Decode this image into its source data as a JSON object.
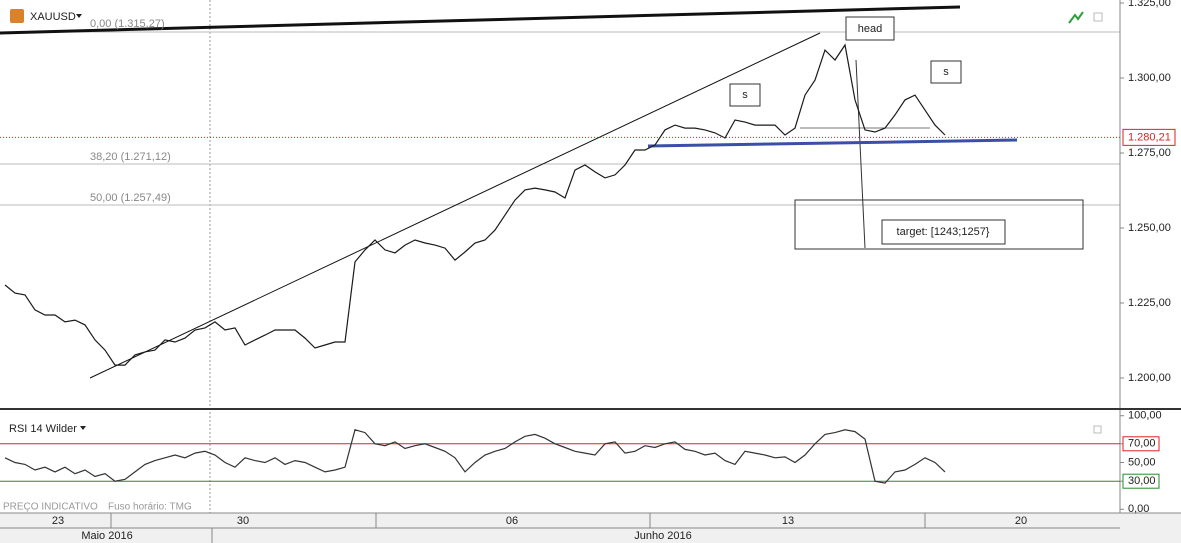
{
  "chart_data": [
    {
      "type": "line",
      "title": "XAUUSD",
      "color": "#1a1a1a",
      "values": [
        1.231,
        1.2283,
        1.2277,
        1.2227,
        1.221,
        1.221,
        1.2187,
        1.2193,
        1.2177,
        1.2127,
        1.2093,
        1.2043,
        1.2043,
        1.2077,
        1.2087,
        1.2093,
        1.2127,
        1.212,
        1.2133,
        1.216,
        1.2167,
        1.2187,
        1.216,
        1.2167,
        1.211,
        1.2127,
        1.2143,
        1.216,
        1.216,
        1.216,
        1.2133,
        1.21,
        1.211,
        1.212,
        1.212,
        1.2387,
        1.2427,
        1.246,
        1.2427,
        1.2417,
        1.2443,
        1.246,
        1.245,
        1.2443,
        1.2433,
        1.2393,
        1.242,
        1.245,
        1.246,
        1.2493,
        1.2543,
        1.2593,
        1.2627,
        1.2633,
        1.2627,
        1.262,
        1.26,
        1.2693,
        1.271,
        1.2687,
        1.2667,
        1.2677,
        1.271,
        1.276,
        1.276,
        1.2777,
        1.2827,
        1.2843,
        1.2833,
        1.2833,
        1.2827,
        1.2817,
        1.28,
        1.286,
        1.2853,
        1.2843,
        1.2843,
        1.2843,
        1.281,
        1.2833,
        1.2943,
        1.2993,
        1.3093,
        1.306,
        1.311,
        1.2927,
        1.2827,
        1.282,
        1.2833,
        1.2877,
        1.2927,
        1.2943,
        1.2893,
        1.2843,
        1.281
      ],
      "xlim": [
        -0.5,
        111.5
      ],
      "xticks": [
        {
          "value": 5.3,
          "label": "23"
        },
        {
          "value": 23.8,
          "label": "30"
        },
        {
          "value": 50.7,
          "label": "06"
        },
        {
          "value": 78.3,
          "label": "13"
        },
        {
          "value": 101.6,
          "label": "20"
        }
      ],
      "months": [
        {
          "value": 10.2,
          "label": "Maio 2016"
        },
        {
          "value": 65.8,
          "label": "Junho 2016"
        }
      ],
      "ylim": [
        1.19,
        1.326
      ],
      "yticks": [
        {
          "value": 1.325,
          "label": "1.325,00"
        },
        {
          "value": 1.3,
          "label": "1.300,00"
        },
        {
          "value": 1.275,
          "label": "1.275,00"
        },
        {
          "value": 1.25,
          "label": "1.250,00"
        },
        {
          "value": 1.225,
          "label": "1.225,00"
        },
        {
          "value": 1.2,
          "label": "1.200,00"
        }
      ],
      "last_price": {
        "value": 1.28021,
        "label": "1.280,21"
      },
      "annotations": {
        "fib_0": "0,00 (1.315,27)",
        "fib_382": "38,20 (1.271,12)",
        "fib_50": "50,00 (1.257,49)",
        "head": "head",
        "shoulder_left": "s",
        "shoulder_right": "s",
        "target": "target: [1243;1257}"
      }
    },
    {
      "type": "line",
      "title": "RSI 14 Wilder",
      "color": "#333333",
      "values": [
        55,
        50,
        48,
        42,
        45,
        40,
        45,
        38,
        42,
        35,
        38,
        30,
        32,
        40,
        48,
        52,
        55,
        58,
        55,
        60,
        62,
        58,
        50,
        45,
        55,
        52,
        50,
        55,
        48,
        52,
        50,
        45,
        40,
        42,
        45,
        85,
        82,
        70,
        68,
        72,
        65,
        68,
        70,
        66,
        62,
        55,
        40,
        50,
        58,
        62,
        65,
        72,
        78,
        80,
        76,
        70,
        66,
        62,
        60,
        58,
        70,
        72,
        60,
        62,
        68,
        66,
        70,
        72,
        64,
        62,
        58,
        60,
        52,
        48,
        62,
        60,
        58,
        55,
        56,
        50,
        58,
        70,
        80,
        82,
        85,
        83,
        75,
        30,
        28,
        40,
        42,
        48,
        55,
        50,
        40
      ],
      "ylim": [
        -4,
        104
      ],
      "yticks": [
        {
          "value": 100,
          "label": "100,00"
        },
        {
          "value": 70,
          "label": "70,00"
        },
        {
          "value": 50,
          "label": "50,00"
        },
        {
          "value": 30,
          "label": "30,00"
        },
        {
          "value": 0,
          "label": "0,00"
        }
      ],
      "note": "PREÇO INDICATIVO",
      "timezone": "Fuso horário: TMG"
    }
  ]
}
